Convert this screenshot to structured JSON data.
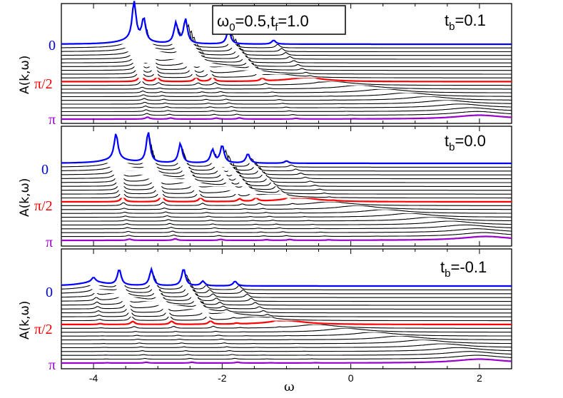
{
  "chart_data": {
    "type": "line",
    "title_annotation": {
      "omega0_symbol": "ω",
      "omega0_sub": "0",
      "omega0_value": "=0.5,t",
      "tf_sub": "f",
      "tf_value": "=1.0"
    },
    "xlabel": "ω",
    "xlim": [
      -4.5,
      2.5
    ],
    "xticks": [
      -4,
      -2,
      0,
      2
    ],
    "xtick_labels": [
      "-4",
      "-2",
      "0",
      "2"
    ],
    "ylabel": "A(k,ω)",
    "k_labels": [
      "0",
      "π/2",
      "π"
    ],
    "k_label_colors": [
      "#0000ee",
      "#ee0000",
      "#9900cc"
    ],
    "curve_color_default": "#000000",
    "curve_color_k0": "#0000ff",
    "curve_color_kpi2": "#ff0000",
    "curve_color_kpi": "#9900cc",
    "n_k_points": 21,
    "panels": [
      {
        "label_prefix": "t",
        "label_sub": "b",
        "label_value": "=0.1",
        "tb": 0.1,
        "k0_peaks": [
          {
            "omega": -3.37,
            "height": 1.0
          },
          {
            "omega": -3.22,
            "height": 0.58
          },
          {
            "omega": -2.72,
            "height": 0.52
          },
          {
            "omega": -2.57,
            "height": 0.62
          },
          {
            "omega": -1.9,
            "height": 0.38
          },
          {
            "omega": -1.2,
            "height": 0.1
          }
        ],
        "band_top_omega": -3.4,
        "band_mid_omega": 0.3,
        "band_bottom_omega": 2.0
      },
      {
        "label_prefix": "t",
        "label_sub": "b",
        "label_value": "=0.0",
        "tb": 0.0,
        "k0_peaks": [
          {
            "omega": -3.65,
            "height": 0.66
          },
          {
            "omega": -3.15,
            "height": 0.78
          },
          {
            "omega": -2.65,
            "height": 0.5
          },
          {
            "omega": -2.15,
            "height": 0.34
          },
          {
            "omega": -2.0,
            "height": 0.45
          },
          {
            "omega": -1.6,
            "height": 0.24
          },
          {
            "omega": -1.0,
            "height": 0.06
          }
        ],
        "band_top_omega": -3.65,
        "band_mid_omega": 0.3,
        "band_bottom_omega": 2.1
      },
      {
        "label_prefix": "t",
        "label_sub": "b",
        "label_value": "=-0.1",
        "tb": -0.1,
        "k0_peaks": [
          {
            "omega": -4.0,
            "height": 0.12
          },
          {
            "omega": -3.6,
            "height": 0.4
          },
          {
            "omega": -3.1,
            "height": 0.42
          },
          {
            "omega": -2.6,
            "height": 0.44
          },
          {
            "omega": -2.3,
            "height": 0.12
          },
          {
            "omega": -1.8,
            "height": 0.12
          }
        ],
        "band_top_omega": -4.0,
        "band_mid_omega": 0.4,
        "band_bottom_omega": 2.0
      }
    ]
  }
}
